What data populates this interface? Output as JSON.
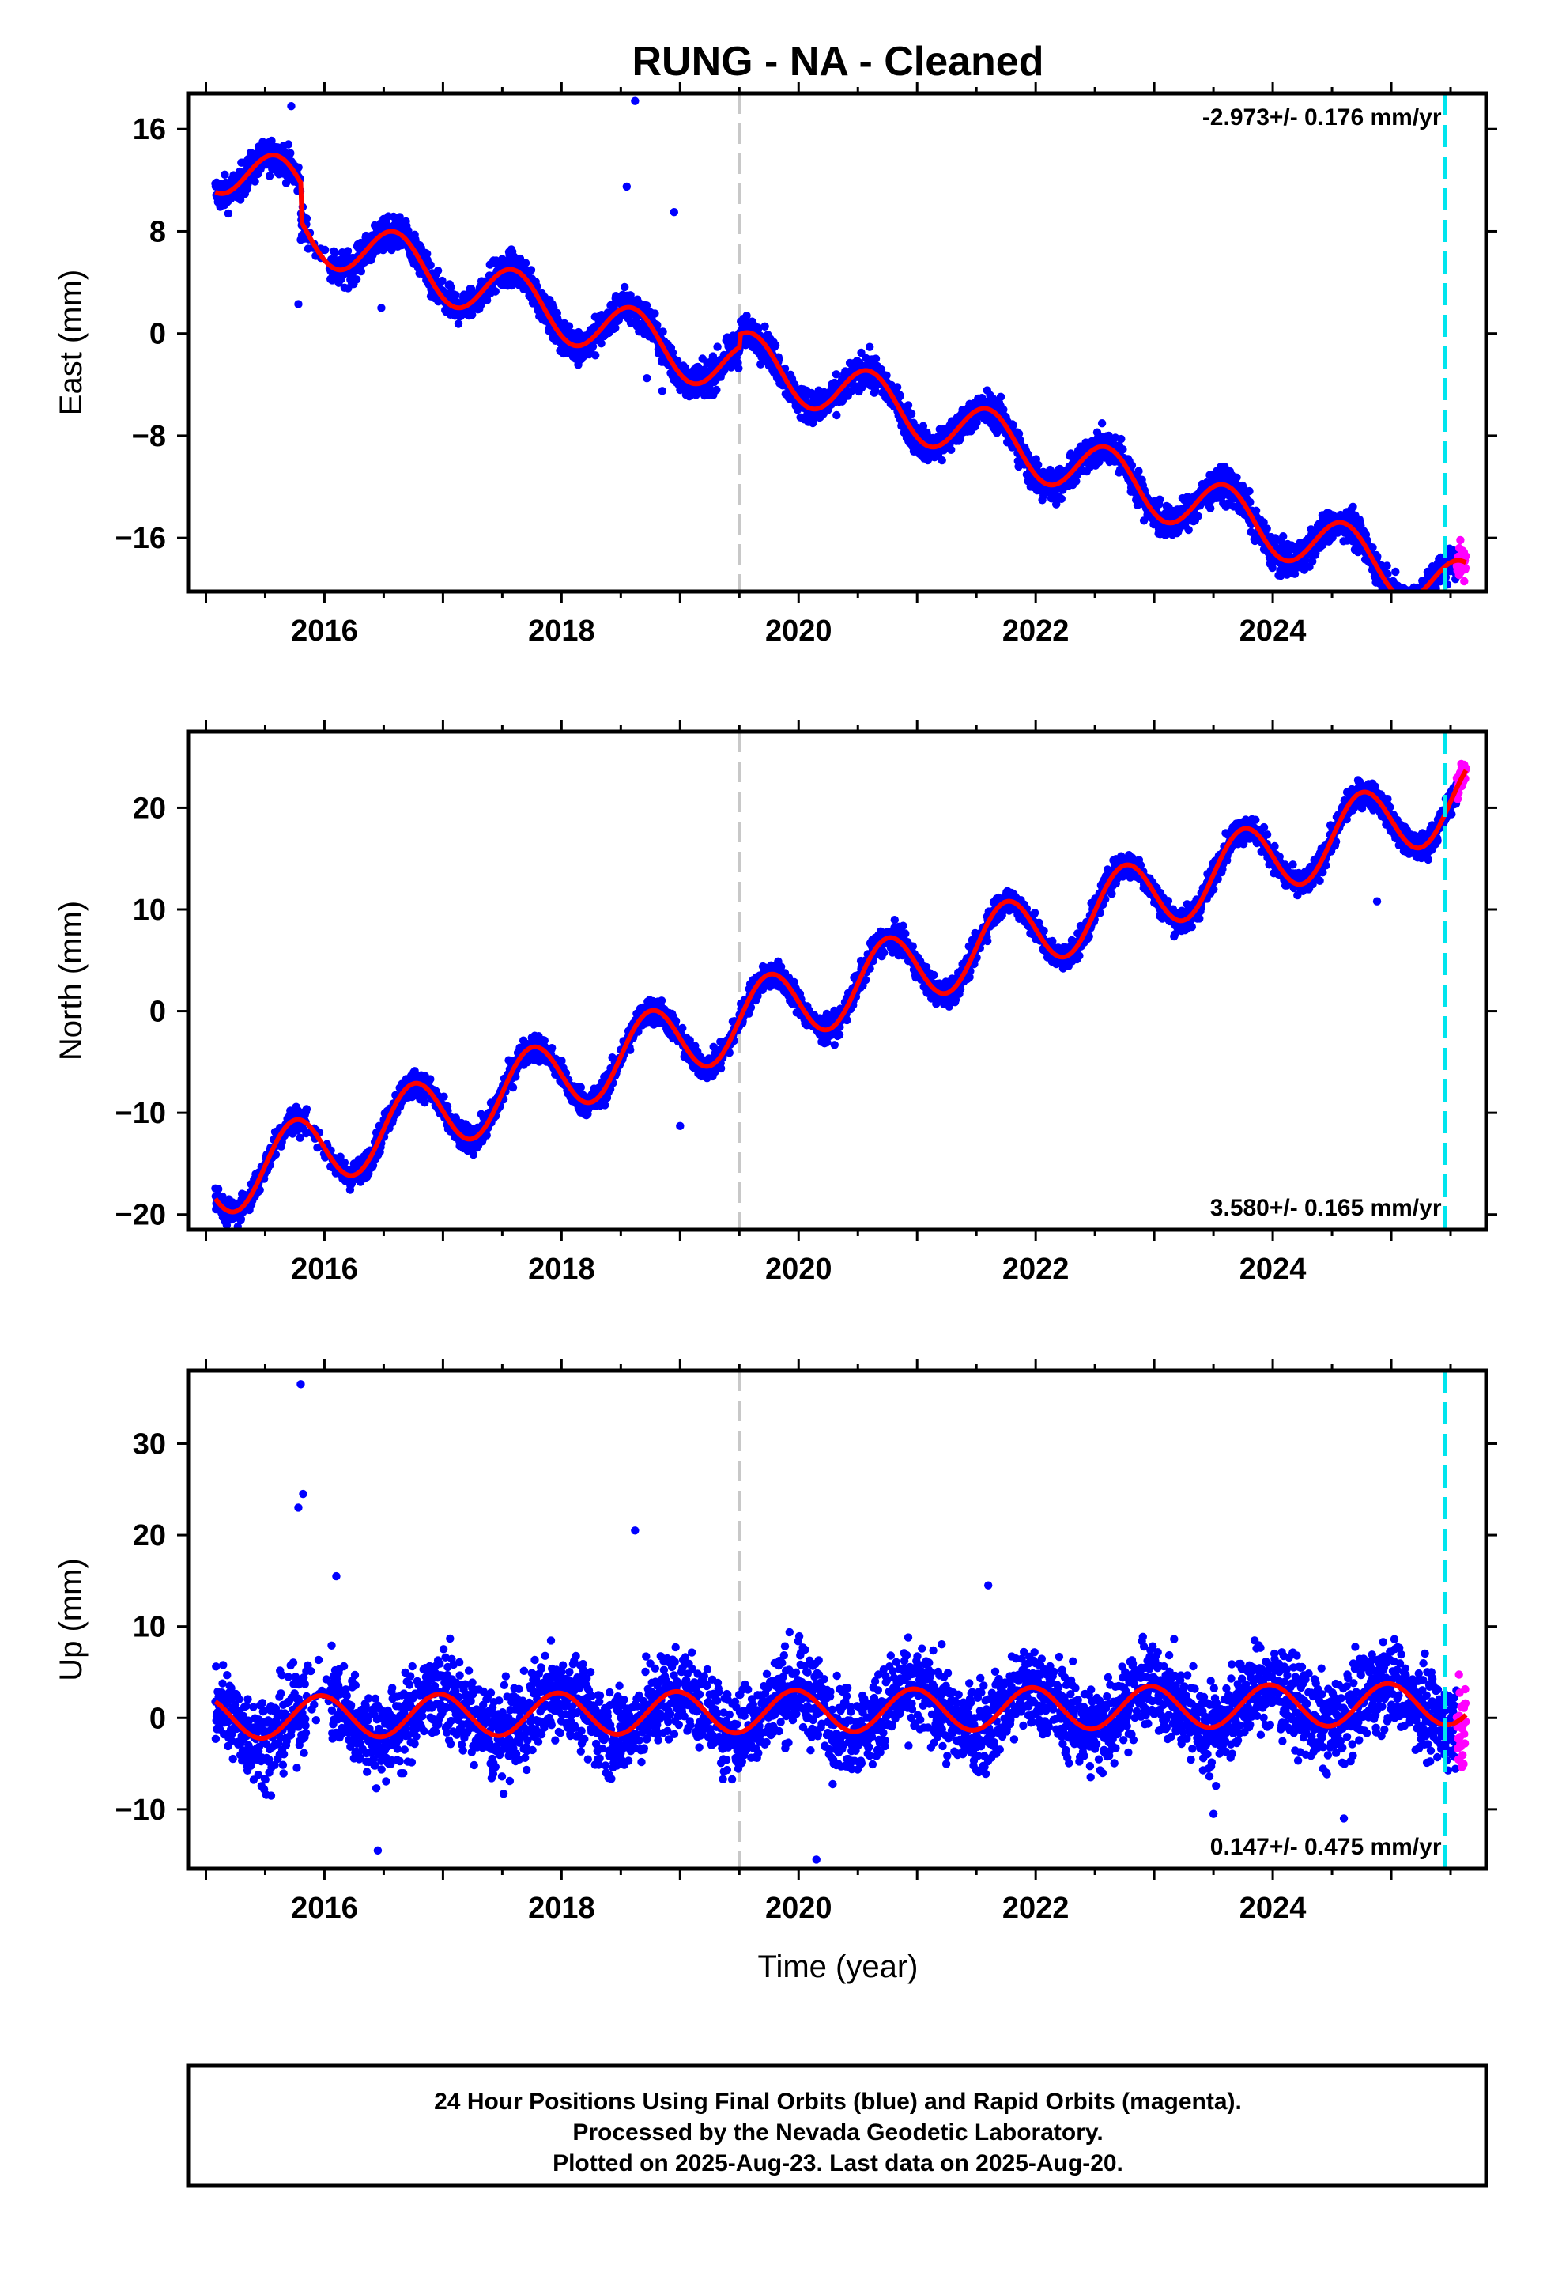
{
  "title": "RUNG  - NA - Cleaned",
  "colors": {
    "final_orbits": "#0000ff",
    "rapid_orbits": "#ff00ff",
    "model": "#ff0000",
    "equipment_change": "#c8c8c8",
    "last_data_marker": "#00e5ee"
  },
  "xlabel": "Time (year)",
  "footer": {
    "line1": "24 Hour Positions Using Final Orbits (blue) and Rapid Orbits (magenta).",
    "line2": "Processed by the Nevada Geodetic Laboratory.",
    "line3": "Plotted on 2025-Aug-23. Last data on 2025-Aug-20."
  },
  "chart_data": [
    {
      "type": "scatter",
      "component": "east",
      "ylabel": "East (mm)",
      "rate_label": "-2.973+/- 0.176 mm/yr",
      "rate_position": "top-right",
      "xlim": [
        2014.85,
        2025.8
      ],
      "ylim": [
        -20.2,
        18.8
      ],
      "xticks": [
        2016,
        2018,
        2020,
        2022,
        2024
      ],
      "xtick_labels": [
        "2016",
        "2018",
        "2020",
        "2022",
        "2024"
      ],
      "yticks": [
        16,
        8,
        0,
        -8,
        -16
      ],
      "ytick_labels": [
        "16",
        "8",
        "0",
        "−8",
        "−16"
      ],
      "x_start": 2015.08,
      "x_end": 2025.63,
      "rapid_start": 2025.55,
      "equipment_change_year": 2019.5,
      "last_data_marker_year": 2025.45,
      "trend": {
        "intercept_at_2015": 13.5,
        "rate": -2.973
      },
      "seasonal": {
        "amplitude": 2.2,
        "phase_year": 0.35
      },
      "offsets": [
        {
          "year": 2015.8,
          "value": -3.0
        },
        {
          "year": 2019.5,
          "value": 1.0
        }
      ],
      "scatter_sd": 0.9,
      "outliers": [
        {
          "x": 2015.72,
          "y": 17.8
        },
        {
          "x": 2018.62,
          "y": 18.2
        },
        {
          "x": 2015.78,
          "y": 2.3
        },
        {
          "x": 2016.48,
          "y": 2.0
        },
        {
          "x": 2018.85,
          "y": -4.5
        },
        {
          "x": 2019.05,
          "y": -4.8
        },
        {
          "x": 2018.72,
          "y": -3.5
        },
        {
          "x": 2018.55,
          "y": 11.5
        },
        {
          "x": 2018.95,
          "y": 9.5
        }
      ]
    },
    {
      "type": "scatter",
      "component": "north",
      "ylabel": "North (mm)",
      "rate_label": "3.580+/- 0.165 mm/yr",
      "rate_position": "bottom-right",
      "xlim": [
        2014.85,
        2025.8
      ],
      "ylim": [
        -21.5,
        27.5
      ],
      "xticks": [
        2016,
        2018,
        2020,
        2022,
        2024
      ],
      "xtick_labels": [
        "2016",
        "2018",
        "2020",
        "2022",
        "2024"
      ],
      "yticks": [
        20,
        10,
        0,
        -10,
        -20
      ],
      "ytick_labels": [
        "20",
        "10",
        "0",
        "−10",
        "−20"
      ],
      "x_start": 2015.08,
      "x_end": 2025.63,
      "rapid_start": 2025.55,
      "equipment_change_year": 2019.5,
      "last_data_marker_year": 2025.45,
      "trend": {
        "intercept_at_2015": -17.0,
        "rate": 3.58
      },
      "seasonal": {
        "amplitude": 3.6,
        "phase_year": 0.5
      },
      "offsets": [],
      "scatter_sd": 0.9,
      "outliers": [
        {
          "x": 2019.0,
          "y": -11.3
        },
        {
          "x": 2024.88,
          "y": 10.8
        },
        {
          "x": 2015.22,
          "y": -20.2
        }
      ]
    },
    {
      "type": "scatter",
      "component": "up",
      "ylabel": "Up (mm)",
      "rate_label": "0.147+/- 0.475 mm/yr",
      "rate_position": "bottom-right",
      "xlim": [
        2014.85,
        2025.8
      ],
      "ylim": [
        -16.5,
        38.0
      ],
      "xticks": [
        2016,
        2018,
        2020,
        2022,
        2024
      ],
      "xtick_labels": [
        "2016",
        "2018",
        "2020",
        "2022",
        "2024"
      ],
      "yticks": [
        30,
        20,
        10,
        0,
        -10
      ],
      "ytick_labels": [
        "30",
        "20",
        "10",
        "0",
        "−10"
      ],
      "x_start": 2015.08,
      "x_end": 2025.63,
      "rapid_start": 2025.55,
      "equipment_change_year": 2019.5,
      "last_data_marker_year": 2025.45,
      "trend": {
        "intercept_at_2015": 0.0,
        "rate": 0.147
      },
      "seasonal": {
        "amplitude": 2.3,
        "phase_year": 0.72
      },
      "offsets": [],
      "scatter_sd": 3.3,
      "outliers": [
        {
          "x": 2015.8,
          "y": 36.5
        },
        {
          "x": 2015.82,
          "y": 24.5
        },
        {
          "x": 2015.78,
          "y": 23.0
        },
        {
          "x": 2016.1,
          "y": 15.5
        },
        {
          "x": 2018.62,
          "y": 20.5
        },
        {
          "x": 2021.6,
          "y": 14.5
        },
        {
          "x": 2016.45,
          "y": -14.5
        },
        {
          "x": 2020.15,
          "y": -15.5
        },
        {
          "x": 2024.6,
          "y": -11.0
        },
        {
          "x": 2015.55,
          "y": -8.5
        },
        {
          "x": 2023.5,
          "y": -10.5
        }
      ]
    }
  ]
}
